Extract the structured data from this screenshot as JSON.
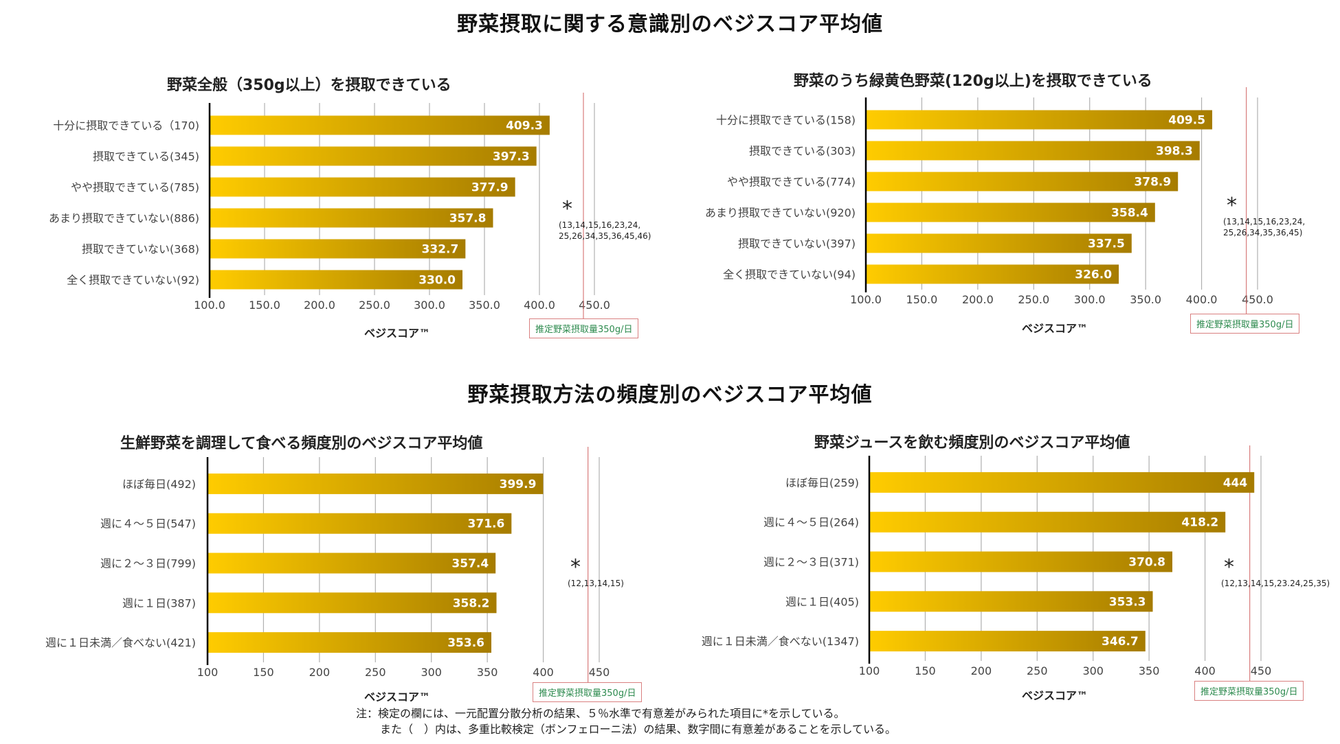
{
  "section_titles": {
    "top": "野菜摂取に関する意識別のベジスコア平均値",
    "bottom": "野菜摂取方法の頻度別のベジスコア平均値"
  },
  "colors": {
    "bar_start": "#FFCC00",
    "bar_end": "#A67C00",
    "axis": "#000000",
    "grid": "#b0b0b0",
    "ref_line": "#d06060",
    "ref_label": "#2d8a4e"
  },
  "chart_data": [
    {
      "type": "bar",
      "orientation": "horizontal",
      "title": "野菜全般（350g以上）を摂取できている",
      "categories": [
        "十分に摂取できている（170)",
        "摂取できている(345)",
        "やや摂取できている(785)",
        "あまり摂取できていない(886)",
        "摂取できていない(368)",
        "全く摂取できていない(92)"
      ],
      "values": [
        409.3,
        397.3,
        377.9,
        357.8,
        332.7,
        330.0
      ],
      "value_labels": [
        "409.3",
        "397.3",
        "377.9",
        "357.8",
        "332.7",
        "330.0"
      ],
      "xlim": [
        100,
        450
      ],
      "ticks": [
        "100.0",
        "150.0",
        "200.0",
        "250.0",
        "300.0",
        "350.0",
        "400.0",
        "450.0"
      ],
      "xlabel": "ベジスコア™",
      "reference_value": 440,
      "reference_label": "推定野菜摂取量350g/日",
      "significance_mark": "*",
      "significance_note": "(13,14,15,16,23,24, 25,26,34,35,36,45,46)"
    },
    {
      "type": "bar",
      "orientation": "horizontal",
      "title": "野菜のうち緑黄色野菜(120g以上)を摂取できている",
      "categories": [
        "十分に摂取できている(158)",
        "摂取できている(303)",
        "やや摂取できている(774)",
        "あまり摂取できていない(920)",
        "摂取できていない(397)",
        "全く摂取できていない(94)"
      ],
      "values": [
        409.5,
        398.3,
        378.9,
        358.4,
        337.5,
        326.0
      ],
      "value_labels": [
        "409.5",
        "398.3",
        "378.9",
        "358.4",
        "337.5",
        "326.0"
      ],
      "xlim": [
        100,
        450
      ],
      "ticks": [
        "100.0",
        "150.0",
        "200.0",
        "250.0",
        "300.0",
        "350.0",
        "400.0",
        "450.0"
      ],
      "xlabel": "ベジスコア™",
      "reference_value": 440,
      "reference_label": "推定野菜摂取量350g/日",
      "significance_mark": "*",
      "significance_note": "(13,14,15,16,23,24, 25,26,34,35,36,45)"
    },
    {
      "type": "bar",
      "orientation": "horizontal",
      "title": "生鮮野菜を調理して食べる頻度別のベジスコア平均値",
      "categories": [
        "ほぼ毎日(492)",
        "週に４～５日(547)",
        "週に２～３日(799)",
        "週に１日(387)",
        "週に１日未満／食べない(421)"
      ],
      "values": [
        399.9,
        371.6,
        357.4,
        358.2,
        353.6
      ],
      "value_labels": [
        "399.9",
        "371.6",
        "357.4",
        "358.2",
        "353.6"
      ],
      "xlim": [
        100,
        450
      ],
      "ticks": [
        "100",
        "150",
        "200",
        "250",
        "300",
        "350",
        "400",
        "450"
      ],
      "xlabel": "ベジスコア™",
      "reference_value": 440,
      "reference_label": "推定野菜摂取量350g/日",
      "significance_mark": "*",
      "significance_note": "(12,13,14,15)"
    },
    {
      "type": "bar",
      "orientation": "horizontal",
      "title": "野菜ジュースを飲む頻度別のベジスコア平均値",
      "categories": [
        "ほぼ毎日(259)",
        "週に４～５日(264)",
        "週に２～３日(371)",
        "週に１日(405)",
        "週に１日未満／食べない(1347)"
      ],
      "values": [
        444,
        418.2,
        370.8,
        353.3,
        346.7
      ],
      "value_labels": [
        "444",
        "418.2",
        "370.8",
        "353.3",
        "346.7"
      ],
      "xlim": [
        100,
        450
      ],
      "ticks": [
        "100",
        "150",
        "200",
        "250",
        "300",
        "350",
        "400",
        "450"
      ],
      "xlabel": "ベジスコア™",
      "reference_value": 440,
      "reference_label": "推定野菜摂取量350g/日",
      "significance_mark": "*",
      "significance_note": "(12,13,14,15,23.24,25,35)"
    }
  ],
  "footnote": {
    "line1": "注：検定の欄には、一元配置分散分析の結果、５％水準で有意差がみられた項目に*を示している。",
    "line2": "また（　）内は、多重比較検定（ボンフェローニ法）の結果、数字間に有意差があることを示している。"
  }
}
